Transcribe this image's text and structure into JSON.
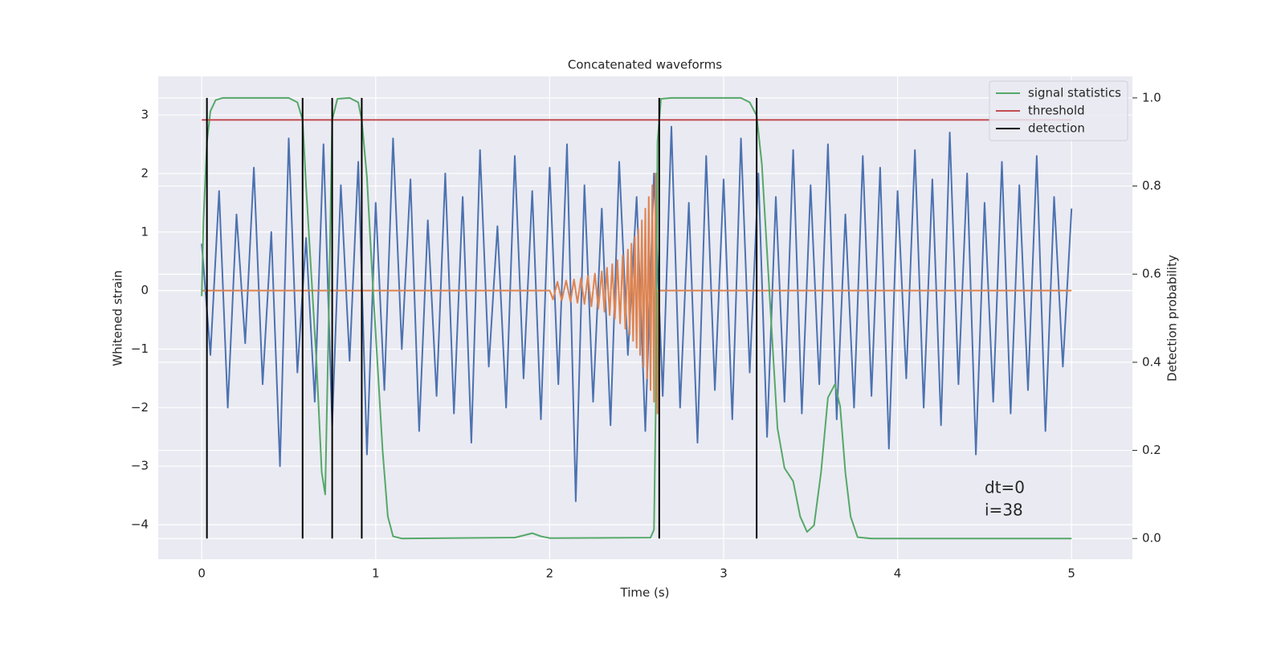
{
  "chart_data": {
    "type": "line",
    "title": "Concatenated waveforms",
    "xlabel": "Time (s)",
    "ylabel": "Whitened strain",
    "y2label": "Detection probability",
    "annotation": [
      "dt=0",
      "i=38"
    ],
    "xlim": [
      -0.25,
      5.35
    ],
    "ylim": [
      -4.59,
      3.66
    ],
    "y2lim": [
      -0.047,
      1.049
    ],
    "xticks": [
      0,
      1,
      2,
      3,
      4,
      5
    ],
    "yticks": [
      {
        "value": -4,
        "label": "−4"
      },
      {
        "value": -3,
        "label": "−3"
      },
      {
        "value": -2,
        "label": "−2"
      },
      {
        "value": -1,
        "label": "−1"
      },
      0,
      1,
      2,
      3
    ],
    "y2ticks": [
      {
        "value": 0,
        "label": "0.0"
      },
      0.2,
      0.4,
      0.6,
      0.8,
      {
        "value": 1,
        "label": "1.0"
      }
    ],
    "grid": true,
    "legend": "upper right",
    "series": [
      {
        "color": "#4c72b0",
        "x": [
          0,
          0.05,
          0.1,
          0.15,
          0.2,
          0.25,
          0.3,
          0.35,
          0.4,
          0.45,
          0.5,
          0.55,
          0.6,
          0.65,
          0.7,
          0.75,
          0.8,
          0.85,
          0.9,
          0.95,
          1,
          1.05,
          1.1,
          1.15,
          1.2,
          1.25,
          1.3,
          1.35,
          1.4,
          1.45,
          1.5,
          1.55,
          1.6,
          1.65,
          1.7,
          1.75,
          1.8,
          1.85,
          1.9,
          1.95,
          2,
          2.05,
          2.1,
          2.15,
          2.2,
          2.25,
          2.3,
          2.35,
          2.4,
          2.45,
          2.5,
          2.55,
          2.6,
          2.65,
          2.7,
          2.75,
          2.8,
          2.85,
          2.9,
          2.95,
          3,
          3.05,
          3.1,
          3.15,
          3.2,
          3.25,
          3.3,
          3.35,
          3.4,
          3.45,
          3.5,
          3.55,
          3.6,
          3.65,
          3.7,
          3.75,
          3.8,
          3.85,
          3.9,
          3.95,
          4,
          4.05,
          4.1,
          4.15,
          4.2,
          4.25,
          4.3,
          4.35,
          4.4,
          4.45,
          4.5,
          4.55,
          4.6,
          4.65,
          4.7,
          4.75,
          4.8,
          4.85,
          4.9,
          4.95,
          5
        ],
        "values": [
          0.8,
          -1.1,
          1.7,
          -2.0,
          1.3,
          -0.9,
          2.1,
          -1.6,
          1.0,
          -3.0,
          2.6,
          -1.4,
          0.9,
          -1.9,
          2.5,
          -2.3,
          1.8,
          -1.2,
          2.2,
          -2.8,
          1.5,
          -1.7,
          2.6,
          -1.0,
          1.9,
          -2.4,
          1.2,
          -1.8,
          2.0,
          -2.1,
          1.6,
          -2.6,
          2.4,
          -1.3,
          1.1,
          -2.0,
          2.3,
          -1.5,
          1.7,
          -2.2,
          2.1,
          -1.6,
          2.5,
          -3.6,
          1.8,
          -1.9,
          1.4,
          -2.3,
          2.2,
          -1.1,
          1.6,
          -2.4,
          2.0,
          -1.8,
          2.8,
          -2.0,
          1.5,
          -2.6,
          2.3,
          -1.7,
          1.9,
          -2.2,
          2.6,
          -1.4,
          2.0,
          -2.5,
          1.6,
          -1.9,
          2.4,
          -2.1,
          1.8,
          -1.6,
          2.5,
          -2.2,
          1.3,
          -2.0,
          2.3,
          -1.8,
          2.1,
          -2.7,
          1.7,
          -1.5,
          2.4,
          -2.0,
          1.9,
          -2.3,
          2.7,
          -1.6,
          2.0,
          -2.8,
          1.5,
          -1.9,
          2.2,
          -2.1,
          1.8,
          -1.7,
          2.3,
          -2.4,
          1.6,
          -1.3,
          1.4
        ]
      },
      {
        "color": "#dd8452",
        "x": [
          0,
          2.0,
          2.02,
          2.045,
          2.07,
          2.095,
          2.12,
          2.14,
          2.16,
          2.18,
          2.2,
          2.22,
          2.24,
          2.26,
          2.28,
          2.3,
          2.315,
          2.33,
          2.345,
          2.36,
          2.375,
          2.39,
          2.405,
          2.42,
          2.435,
          2.45,
          2.46,
          2.47,
          2.48,
          2.49,
          2.5,
          2.51,
          2.52,
          2.53,
          2.54,
          2.55,
          2.56,
          2.57,
          2.58,
          2.59,
          2.6,
          2.61,
          2.62,
          2.625,
          2.63,
          5
        ],
        "values": [
          0,
          0,
          -0.15,
          0.15,
          -0.17,
          0.17,
          -0.19,
          0.19,
          -0.21,
          0.21,
          -0.23,
          0.25,
          -0.27,
          0.29,
          -0.31,
          0.33,
          -0.36,
          0.39,
          -0.42,
          0.45,
          -0.48,
          0.52,
          -0.56,
          0.6,
          -0.65,
          0.7,
          -0.75,
          0.8,
          -0.86,
          0.92,
          -0.98,
          1.05,
          -1.1,
          1.2,
          -1.3,
          1.4,
          -1.5,
          1.6,
          -1.7,
          1.8,
          -1.9,
          2.0,
          -2.1,
          0,
          0,
          0
        ]
      },
      {
        "name": "signal statistics",
        "color": "#55a868",
        "axis": "y2",
        "x": [
          0,
          0.01,
          0.03,
          0.05,
          0.08,
          0.12,
          0.5,
          0.55,
          0.58,
          0.6,
          0.63,
          0.66,
          0.69,
          0.71,
          0.73,
          0.75,
          0.78,
          0.85,
          0.9,
          0.92,
          0.95,
          0.98,
          1.01,
          1.04,
          1.07,
          1.1,
          1.15,
          1.8,
          1.9,
          1.95,
          2.0,
          2.58,
          2.6,
          2.61,
          2.62,
          2.64,
          2.7,
          3.1,
          3.15,
          3.19,
          3.22,
          3.25,
          3.28,
          3.31,
          3.35,
          3.4,
          3.44,
          3.48,
          3.52,
          3.56,
          3.6,
          3.64,
          3.67,
          3.7,
          3.73,
          3.77,
          3.85,
          5.0
        ],
        "values": [
          0.55,
          0.72,
          0.9,
          0.97,
          0.995,
          1.0,
          1.0,
          0.99,
          0.95,
          0.8,
          0.6,
          0.4,
          0.15,
          0.1,
          0.5,
          0.95,
          0.998,
          1.0,
          0.99,
          0.95,
          0.82,
          0.6,
          0.4,
          0.2,
          0.05,
          0.005,
          0.0,
          0.002,
          0.012,
          0.005,
          0.001,
          0.002,
          0.02,
          0.3,
          0.9,
          0.998,
          1.0,
          1.0,
          0.99,
          0.96,
          0.85,
          0.65,
          0.45,
          0.25,
          0.16,
          0.13,
          0.05,
          0.015,
          0.03,
          0.15,
          0.32,
          0.35,
          0.3,
          0.15,
          0.05,
          0.003,
          0.0,
          0.0
        ]
      },
      {
        "name": "threshold",
        "color": "#c44e52",
        "axis": "y2",
        "x": [
          0,
          5
        ],
        "values": [
          0.95,
          0.95
        ]
      },
      {
        "name": "detection",
        "color": "#000000",
        "axis": "y2",
        "kind": "vline",
        "x": [
          0.03,
          0.58,
          0.75,
          0.92,
          2.63,
          3.19
        ],
        "values": [
          1,
          1,
          1,
          1,
          1,
          1
        ]
      }
    ]
  }
}
